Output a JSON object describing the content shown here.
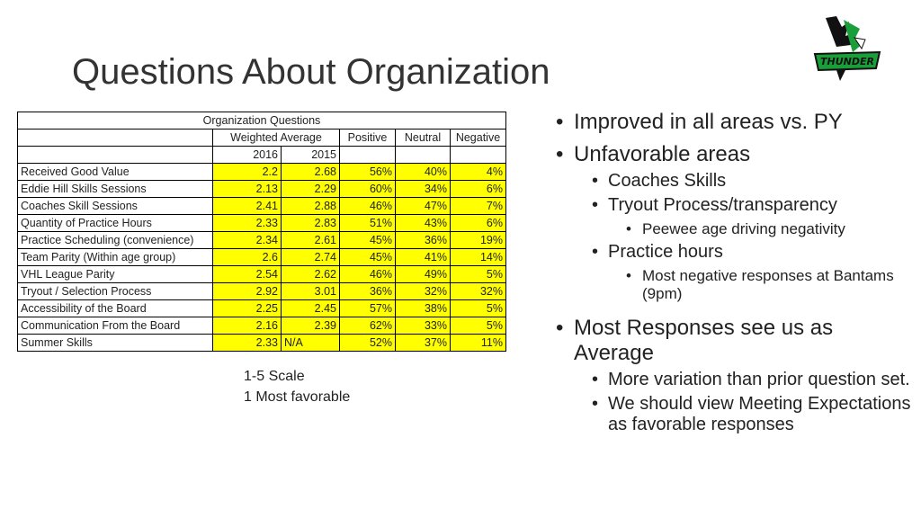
{
  "slide": {
    "title": "Questions About Organization"
  },
  "table": {
    "caption": "Organization Questions",
    "group_header": "Weighted Average",
    "col_positive": "Positive",
    "col_neutral": "Neutral",
    "col_negative": "Negative",
    "year_2016": "2016",
    "year_2015": "2015",
    "rows": [
      {
        "label": "Received Good Value",
        "y2016": "2.2",
        "y2015": "2.68",
        "positive": "56%",
        "neutral": "40%",
        "negative": "4%"
      },
      {
        "label": "Eddie Hill Skills Sessions",
        "y2016": "2.13",
        "y2015": "2.29",
        "positive": "60%",
        "neutral": "34%",
        "negative": "6%"
      },
      {
        "label": "Coaches Skill Sessions",
        "y2016": "2.41",
        "y2015": "2.88",
        "positive": "46%",
        "neutral": "47%",
        "negative": "7%"
      },
      {
        "label": "Quantity of Practice Hours",
        "y2016": "2.33",
        "y2015": "2.83",
        "positive": "51%",
        "neutral": "43%",
        "negative": "6%"
      },
      {
        "label": "Practice Scheduling (convenience)",
        "y2016": "2.34",
        "y2015": "2.61",
        "positive": "45%",
        "neutral": "36%",
        "negative": "19%"
      },
      {
        "label": "Team Parity (Within age group)",
        "y2016": "2.6",
        "y2015": "2.74",
        "positive": "45%",
        "neutral": "41%",
        "negative": "14%"
      },
      {
        "label": "VHL League Parity",
        "y2016": "2.54",
        "y2015": "2.62",
        "positive": "46%",
        "neutral": "49%",
        "negative": "5%"
      },
      {
        "label": "Tryout / Selection Process",
        "y2016": "2.92",
        "y2015": "3.01",
        "positive": "36%",
        "neutral": "32%",
        "negative": "32%"
      },
      {
        "label": "Accessibility of the Board",
        "y2016": "2.25",
        "y2015": "2.45",
        "positive": "57%",
        "neutral": "38%",
        "negative": "5%"
      },
      {
        "label": "Communication From the Board",
        "y2016": "2.16",
        "y2015": "2.39",
        "positive": "62%",
        "neutral": "33%",
        "negative": "5%"
      },
      {
        "label": "Summer Skills",
        "y2016": "2.33",
        "y2015": "N/A",
        "positive": "52%",
        "neutral": "37%",
        "negative": "11%"
      }
    ]
  },
  "scale_note": {
    "line1": "1-5 Scale",
    "line2": "1 Most favorable"
  },
  "bullets": {
    "b1": "Improved in all areas vs. PY",
    "b2": "Unfavorable areas",
    "b2a": "Coaches Skills",
    "b2b": "Tryout Process/transparency",
    "b2b1": "Peewee age driving negativity",
    "b2c": "Practice hours",
    "b2c1": "Most negative responses at Bantams (9pm)",
    "b3": "Most Responses see us as Average",
    "b3a": "More variation than prior question set.",
    "b3b": "We should view Meeting Expectations as favorable responses"
  },
  "colors": {
    "highlight": "#ffff00",
    "logo_green": "#1a9e3a"
  },
  "icons": {
    "logo": "thunder-hockey-logo",
    "bullet": "bullet-dot"
  }
}
